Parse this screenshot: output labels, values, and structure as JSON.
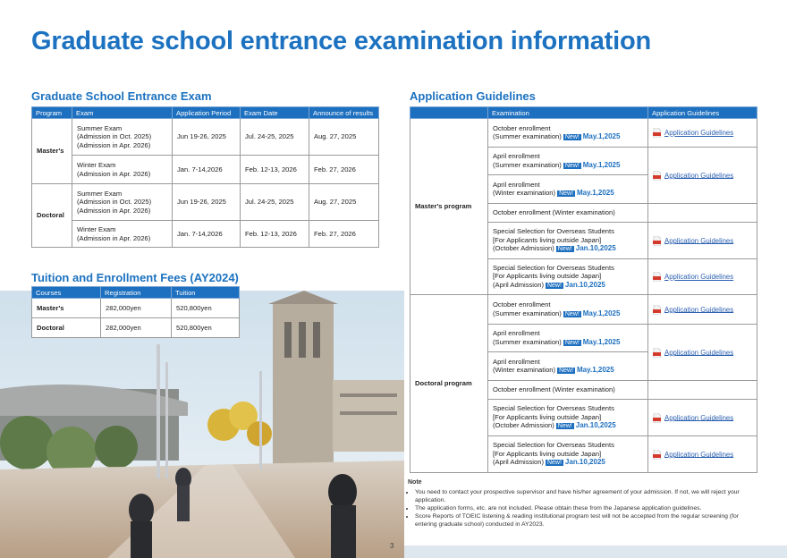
{
  "title": "Graduate school entrance examination information",
  "entrance_exam": {
    "heading": "Graduate School Entrance Exam",
    "columns": [
      "Program",
      "Exam",
      "Application Period",
      "Exam Date",
      "Announce of results"
    ],
    "rows": [
      {
        "program": "Master's",
        "exams": [
          {
            "exam": [
              "Summer Exam",
              "(Admission in Oct. 2025)",
              "(Admission in Apr. 2026)"
            ],
            "period": "Jun 19-26, 2025",
            "date": "Jul. 24-25, 2025",
            "results": "Aug. 27, 2025"
          },
          {
            "exam": [
              "Winter Exam",
              "(Admission in Apr. 2026)"
            ],
            "period": "Jan. 7-14,2026",
            "date": "Feb. 12-13, 2026",
            "results": "Feb. 27, 2026"
          }
        ]
      },
      {
        "program": "Doctoral",
        "exams": [
          {
            "exam": [
              "Summer Exam",
              "(Admission in Oct. 2025)",
              "(Admission in Apr. 2026)"
            ],
            "period": "Jun 19-26, 2025",
            "date": "Jul. 24-25, 2025",
            "results": "Aug. 27, 2025"
          },
          {
            "exam": [
              "Winter Exam",
              "(Admission in Apr. 2026)"
            ],
            "period": "Jan. 7-14,2026",
            "date": "Feb. 12-13, 2026",
            "results": "Feb. 27, 2026"
          }
        ]
      }
    ]
  },
  "tuition": {
    "heading": "Tuition and Enrollment Fees (AY2024)",
    "columns": [
      "Courses",
      "Registration",
      "Tuition"
    ],
    "rows": [
      [
        "Master's",
        "282,000yen",
        "520,800yen"
      ],
      [
        "Doctoral",
        "282,000yen",
        "520,800yen"
      ]
    ]
  },
  "guidelines": {
    "heading": "Application Guidelines",
    "columns": [
      "Examination",
      "Application Guidelines"
    ],
    "programs": [
      {
        "program": "Master's program",
        "groups": [
          {
            "rows": [
              {
                "lines": [
                  "October enrollment",
                  "(Summer examination)"
                ],
                "badge": "New!",
                "date": "May.1,2025"
              }
            ],
            "link": "Application Guidelines"
          },
          {
            "rows": [
              {
                "lines": [
                  "April enrollment",
                  "(Summer examination)"
                ],
                "badge": "New!",
                "date": "May.1,2025"
              },
              {
                "lines": [
                  "April enrollment",
                  "(Winter examination)"
                ],
                "badge": "New!",
                "date": "May.1,2025"
              }
            ],
            "link": "Application Guidelines"
          },
          {
            "rows": [
              {
                "lines": [
                  "October enrollment (Winter examination)"
                ]
              }
            ]
          },
          {
            "rows": [
              {
                "lines": [
                  "Special Selection for Overseas Students",
                  "[For Applicants living outside Japan]",
                  "(October Admission)"
                ],
                "badge": "New!",
                "date": "Jan.10,2025"
              }
            ],
            "link": "Application Guidelines"
          },
          {
            "rows": [
              {
                "lines": [
                  "Special Selection for Overseas Students",
                  "[For Applicants living outside Japan]",
                  "(April Admission)"
                ],
                "badge": "New!",
                "date": "Jan.10,2025"
              }
            ],
            "link": "Application Guidelines"
          }
        ]
      },
      {
        "program": "Doctoral program",
        "groups": [
          {
            "rows": [
              {
                "lines": [
                  "October enrollment",
                  "(Summer examination)"
                ],
                "badge": "New!",
                "date": "May.1,2025"
              }
            ],
            "link": "Application Guidelines"
          },
          {
            "rows": [
              {
                "lines": [
                  "April enrollment",
                  "(Summer examination)"
                ],
                "badge": "New!",
                "date": "May.1,2025"
              },
              {
                "lines": [
                  "April enrollment",
                  "(Winter examination)"
                ],
                "badge": "New!",
                "date": "May.1,2025"
              }
            ],
            "link": "Application Guidelines"
          },
          {
            "rows": [
              {
                "lines": [
                  "October enrollment (Winter examination)"
                ]
              }
            ]
          },
          {
            "rows": [
              {
                "lines": [
                  "Special Selection for Overseas Students",
                  "[For Applicants living outside Japan]",
                  "(October Admission)"
                ],
                "badge": "New!",
                "date": "Jan.10,2025"
              }
            ],
            "link": "Application Guidelines"
          },
          {
            "rows": [
              {
                "lines": [
                  "Special Selection for Overseas Students",
                  "[For Applicants living outside Japan]",
                  "(April Admission)"
                ],
                "badge": "New!",
                "date": "Jan.10,2025"
              }
            ],
            "link": "Application Guidelines"
          }
        ]
      }
    ]
  },
  "note": {
    "heading": "Note",
    "items": [
      "You need to contact your prospective supervisor and have his/her agreement of your admission. If not, we will reject your application.",
      "The application forms, etc. are not included. Please obtain these from the Japanese application guidelines.",
      "Score Reports of TOEIC listening & reading institutional program test will not be accepted from the regular screening (for entering graduate school) conducted in AY2023."
    ]
  },
  "page_number": "3"
}
